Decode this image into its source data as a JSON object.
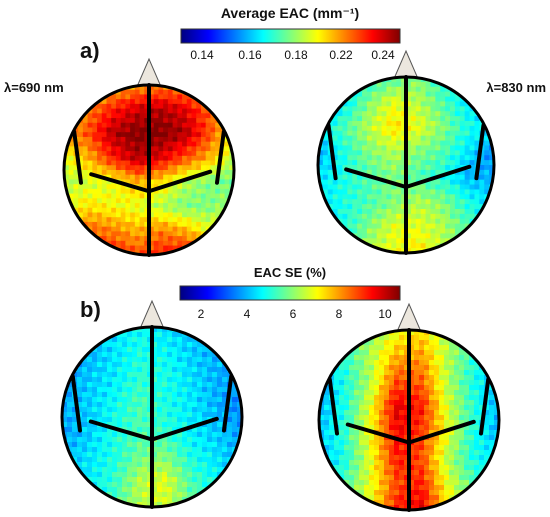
{
  "panel_a": {
    "label": "a)",
    "colorbar_title": "Average EAC (mm⁻¹)",
    "colorbar_ticks": [
      "0.14",
      "0.16",
      "0.18",
      "0.22",
      "0.24"
    ],
    "left_annotation": "λ=690 nm",
    "right_annotation": "λ=830 nm"
  },
  "panel_b": {
    "label": "b)",
    "colorbar_title": "EAC SE (%)",
    "colorbar_ticks": [
      "2",
      "4",
      "6",
      "8",
      "10"
    ]
  },
  "colors": {
    "colormap": [
      "#00007f",
      "#0000ff",
      "#007fff",
      "#00ffff",
      "#7fff7f",
      "#ffff00",
      "#ff7f00",
      "#ff0000",
      "#7f0000"
    ],
    "head_outline": "#000000",
    "nose_fill": "#ece7de"
  },
  "maps": {
    "a_left": [
      [
        0.55,
        0.62,
        0.68,
        0.72,
        0.74,
        0.72,
        0.66,
        0.6
      ],
      [
        0.65,
        0.75,
        0.85,
        0.92,
        0.95,
        0.9,
        0.78,
        0.65
      ],
      [
        0.7,
        0.8,
        0.95,
        1.0,
        1.0,
        0.95,
        0.8,
        0.62
      ],
      [
        0.6,
        0.7,
        0.85,
        0.95,
        0.9,
        0.8,
        0.7,
        0.55
      ],
      [
        0.55,
        0.58,
        0.6,
        0.7,
        0.65,
        0.55,
        0.5,
        0.48
      ],
      [
        0.6,
        0.65,
        0.62,
        0.6,
        0.55,
        0.5,
        0.5,
        0.55
      ],
      [
        0.65,
        0.78,
        0.75,
        0.7,
        0.75,
        0.7,
        0.6,
        0.7
      ],
      [
        0.7,
        0.8,
        0.85,
        0.8,
        0.85,
        0.88,
        0.8,
        0.7
      ]
    ],
    "a_right": [
      [
        0.3,
        0.35,
        0.4,
        0.45,
        0.5,
        0.4,
        0.35,
        0.3
      ],
      [
        0.3,
        0.35,
        0.5,
        0.6,
        0.55,
        0.45,
        0.35,
        0.3
      ],
      [
        0.35,
        0.45,
        0.55,
        0.65,
        0.6,
        0.5,
        0.4,
        0.35
      ],
      [
        0.3,
        0.4,
        0.5,
        0.55,
        0.5,
        0.45,
        0.35,
        0.25
      ],
      [
        0.35,
        0.4,
        0.45,
        0.5,
        0.45,
        0.4,
        0.3,
        0.3
      ],
      [
        0.35,
        0.4,
        0.45,
        0.5,
        0.55,
        0.5,
        0.4,
        0.35
      ],
      [
        0.3,
        0.4,
        0.5,
        0.6,
        0.6,
        0.55,
        0.45,
        0.35
      ],
      [
        0.35,
        0.4,
        0.55,
        0.6,
        0.65,
        0.55,
        0.45,
        0.4
      ]
    ],
    "b_left": [
      [
        0.3,
        0.32,
        0.35,
        0.38,
        0.35,
        0.32,
        0.3,
        0.28
      ],
      [
        0.25,
        0.3,
        0.35,
        0.4,
        0.38,
        0.33,
        0.3,
        0.28
      ],
      [
        0.28,
        0.32,
        0.36,
        0.42,
        0.4,
        0.35,
        0.3,
        0.27
      ],
      [
        0.3,
        0.33,
        0.38,
        0.45,
        0.4,
        0.36,
        0.3,
        0.25
      ],
      [
        0.28,
        0.32,
        0.4,
        0.45,
        0.42,
        0.36,
        0.32,
        0.28
      ],
      [
        0.3,
        0.35,
        0.4,
        0.48,
        0.5,
        0.4,
        0.35,
        0.3
      ],
      [
        0.32,
        0.36,
        0.42,
        0.55,
        0.6,
        0.45,
        0.38,
        0.33
      ],
      [
        0.33,
        0.38,
        0.44,
        0.55,
        0.58,
        0.48,
        0.4,
        0.35
      ]
    ],
    "b_right": [
      [
        0.4,
        0.45,
        0.5,
        0.6,
        0.65,
        0.55,
        0.45,
        0.35
      ],
      [
        0.35,
        0.42,
        0.55,
        0.7,
        0.72,
        0.55,
        0.42,
        0.3
      ],
      [
        0.3,
        0.4,
        0.55,
        0.8,
        0.78,
        0.55,
        0.4,
        0.3
      ],
      [
        0.3,
        0.4,
        0.6,
        0.9,
        0.85,
        0.58,
        0.42,
        0.3
      ],
      [
        0.32,
        0.42,
        0.62,
        0.88,
        0.82,
        0.6,
        0.4,
        0.3
      ],
      [
        0.3,
        0.4,
        0.6,
        0.85,
        0.8,
        0.55,
        0.4,
        0.35
      ],
      [
        0.35,
        0.45,
        0.6,
        0.8,
        0.85,
        0.6,
        0.45,
        0.38
      ],
      [
        0.38,
        0.48,
        0.62,
        0.85,
        0.9,
        0.65,
        0.48,
        0.4
      ]
    ]
  }
}
